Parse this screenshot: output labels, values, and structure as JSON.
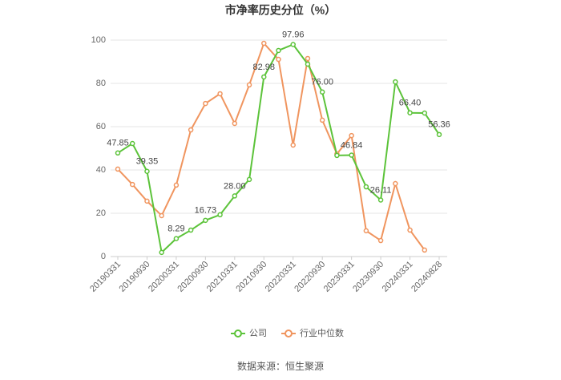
{
  "chart_data": {
    "type": "line",
    "title": "市净率历史分位（%）",
    "source": "数据来源：恒生聚源",
    "categories": [
      "20190331",
      null,
      "20190930",
      null,
      "20200331",
      null,
      "20200930",
      null,
      "20210331",
      null,
      "20210930",
      null,
      "20220331",
      null,
      "20220930",
      null,
      "20230331",
      null,
      "20230930",
      null,
      "20240331",
      null,
      "20240828"
    ],
    "series": [
      {
        "name": "公司",
        "color": "#5cc33a",
        "values": [
          47.85,
          52.2,
          39.35,
          1.9,
          8.29,
          12.2,
          16.73,
          19.3,
          28.0,
          35.6,
          82.98,
          95.2,
          97.96,
          88.9,
          76.0,
          46.7,
          46.84,
          32.2,
          26.11,
          80.7,
          66.4,
          66.3,
          56.36
        ],
        "value_labels": [
          "47.85",
          null,
          "39.35",
          null,
          "8.29",
          null,
          "16.73",
          null,
          "28.00",
          null,
          "82.98",
          null,
          "97.96",
          null,
          "76.00",
          null,
          "46.84",
          null,
          "26.11",
          null,
          "66.40",
          null,
          "56.36"
        ]
      },
      {
        "name": "行业中位数",
        "color": "#f0955f",
        "values": [
          40.4,
          33.3,
          25.6,
          18.9,
          33.0,
          58.5,
          70.7,
          75.2,
          61.5,
          79.3,
          98.5,
          91.1,
          51.5,
          91.5,
          63.0,
          47.4,
          55.9,
          11.9,
          7.4,
          33.7,
          12.2,
          3.0,
          null
        ]
      }
    ],
    "ylim": [
      0,
      100
    ],
    "yticks": [
      0,
      20,
      40,
      60,
      80,
      100
    ],
    "grid": true,
    "legend": "bottom"
  }
}
